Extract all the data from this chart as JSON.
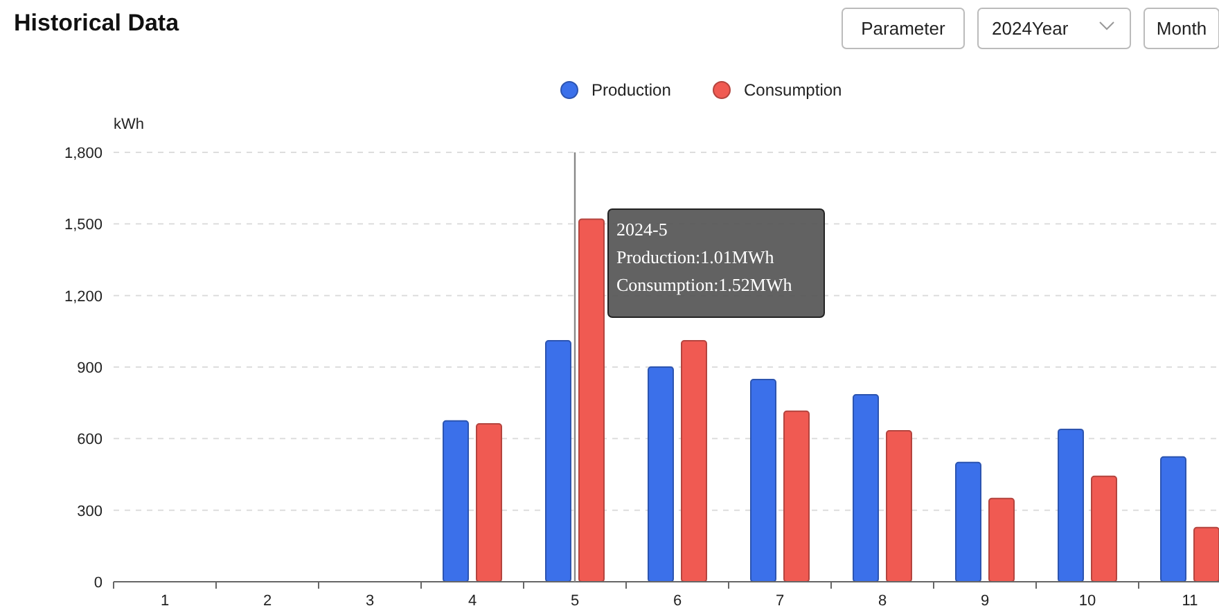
{
  "chart_data": {
    "type": "bar",
    "title": "Historical Data",
    "ylabel": "kWh",
    "categories": [
      "1",
      "2",
      "3",
      "4",
      "5",
      "6",
      "7",
      "8",
      "9",
      "10",
      "11"
    ],
    "series": [
      {
        "name": "Production",
        "color": "#3b70ea",
        "values": [
          null,
          null,
          null,
          674,
          1010,
          900,
          848,
          784,
          500,
          639,
          523
        ]
      },
      {
        "name": "Consumption",
        "color": "#f05a52",
        "values": [
          null,
          null,
          null,
          662,
          1520,
          1010,
          715,
          633,
          349,
          442,
          227
        ]
      }
    ],
    "ylim": [
      0,
      1800
    ],
    "yticks": [
      0,
      {
        "value": 300,
        "label": "300"
      },
      {
        "value": 600,
        "label": "600"
      },
      {
        "value": 900,
        "label": "900"
      },
      {
        "value": 1200,
        "label": "1,200"
      },
      {
        "value": 1500,
        "label": "1,500"
      },
      {
        "value": 1800,
        "label": "1,800"
      }
    ],
    "grid": "y",
    "legend": "top",
    "ref_lines": [
      {
        "axis": "x",
        "value": "5",
        "color": "#888888"
      }
    ],
    "annotations": [
      {
        "text": "2024-5\nProduction:1.01MWh\nConsumption:1.52MWh",
        "x": "5"
      },
      "Parameter",
      "2024Year",
      "Month"
    ]
  }
}
